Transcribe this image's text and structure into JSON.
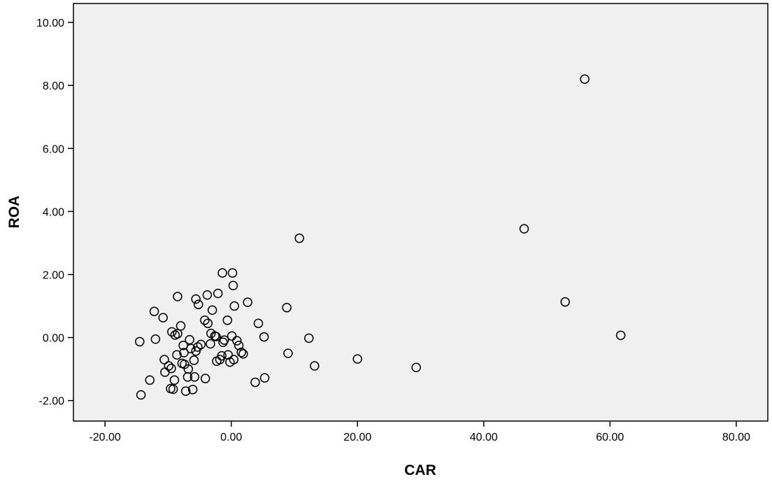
{
  "chart_data": {
    "type": "scatter",
    "title": "",
    "xlabel": "CAR",
    "ylabel": "ROA",
    "xlim": [
      -25,
      85
    ],
    "ylim": [
      -2.65,
      10.6
    ],
    "xticks": [
      -20,
      0,
      20,
      40,
      60,
      80
    ],
    "yticks": [
      -2,
      0,
      2,
      4,
      6,
      8,
      10
    ],
    "xtick_labels": [
      "-20.00",
      "0.00",
      "20.00",
      "40.00",
      "60.00",
      "80.00"
    ],
    "ytick_labels": [
      "-2.00",
      "0.00",
      "2.00",
      "4.00",
      "6.00",
      "8.00",
      "10.00"
    ],
    "grid": false,
    "marker": "open-circle",
    "colors": {
      "plot_background": "#f0f0f0",
      "marker_stroke": "#000000",
      "axis": "#000000"
    },
    "points": [
      [
        -14.5,
        -0.13
      ],
      [
        -14.3,
        -1.82
      ],
      [
        -12.9,
        -1.35
      ],
      [
        -12.2,
        0.83
      ],
      [
        -12.0,
        -0.05
      ],
      [
        -10.8,
        0.63
      ],
      [
        -10.6,
        -0.7
      ],
      [
        -10.5,
        -1.1
      ],
      [
        -9.9,
        -0.9
      ],
      [
        -9.6,
        -1.62
      ],
      [
        -9.5,
        -0.98
      ],
      [
        -9.4,
        0.18
      ],
      [
        -9.2,
        -1.64
      ],
      [
        -9.0,
        -1.35
      ],
      [
        -8.9,
        0.08
      ],
      [
        -8.6,
        -0.55
      ],
      [
        -8.5,
        0.12
      ],
      [
        -8.5,
        1.3
      ],
      [
        -8.0,
        0.37
      ],
      [
        -7.8,
        -0.82
      ],
      [
        -7.6,
        -0.25
      ],
      [
        -7.5,
        -0.48
      ],
      [
        -7.4,
        -0.85
      ],
      [
        -7.2,
        -1.7
      ],
      [
        -6.9,
        -1.25
      ],
      [
        -6.8,
        -1.0
      ],
      [
        -6.6,
        -0.07
      ],
      [
        -6.4,
        -0.35
      ],
      [
        -6.1,
        -1.65
      ],
      [
        -5.9,
        -0.72
      ],
      [
        -5.8,
        -1.25
      ],
      [
        -5.6,
        1.22
      ],
      [
        -5.6,
        -0.43
      ],
      [
        -5.3,
        -0.3
      ],
      [
        -5.2,
        1.05
      ],
      [
        -4.8,
        -0.22
      ],
      [
        -4.2,
        0.55
      ],
      [
        -4.1,
        -1.3
      ],
      [
        -3.8,
        1.35
      ],
      [
        -3.7,
        0.45
      ],
      [
        -3.3,
        -0.2
      ],
      [
        -3.2,
        0.13
      ],
      [
        -3.0,
        0.87
      ],
      [
        -2.6,
        0.05
      ],
      [
        -2.4,
        0.03
      ],
      [
        -2.3,
        -0.75
      ],
      [
        -2.1,
        1.4
      ],
      [
        -1.8,
        -0.7
      ],
      [
        -1.5,
        -0.58
      ],
      [
        -1.4,
        2.05
      ],
      [
        -1.3,
        -0.15
      ],
      [
        -1.1,
        -0.08
      ],
      [
        -0.6,
        0.55
      ],
      [
        -0.5,
        -0.55
      ],
      [
        -0.2,
        -0.78
      ],
      [
        0.1,
        0.05
      ],
      [
        0.2,
        2.05
      ],
      [
        0.3,
        1.65
      ],
      [
        0.4,
        -0.7
      ],
      [
        0.5,
        1.0
      ],
      [
        0.9,
        -0.1
      ],
      [
        1.2,
        -0.25
      ],
      [
        1.6,
        -0.47
      ],
      [
        1.9,
        -0.52
      ],
      [
        2.6,
        1.12
      ],
      [
        3.8,
        -1.42
      ],
      [
        4.3,
        0.45
      ],
      [
        5.2,
        0.02
      ],
      [
        5.3,
        -1.28
      ],
      [
        8.8,
        0.95
      ],
      [
        9.0,
        -0.5
      ],
      [
        10.8,
        3.15
      ],
      [
        12.3,
        -0.02
      ],
      [
        13.2,
        -0.9
      ],
      [
        20.0,
        -0.68
      ],
      [
        29.3,
        -0.95
      ],
      [
        46.4,
        3.45
      ],
      [
        52.9,
        1.13
      ],
      [
        56.0,
        8.2
      ],
      [
        61.7,
        0.07
      ]
    ]
  }
}
